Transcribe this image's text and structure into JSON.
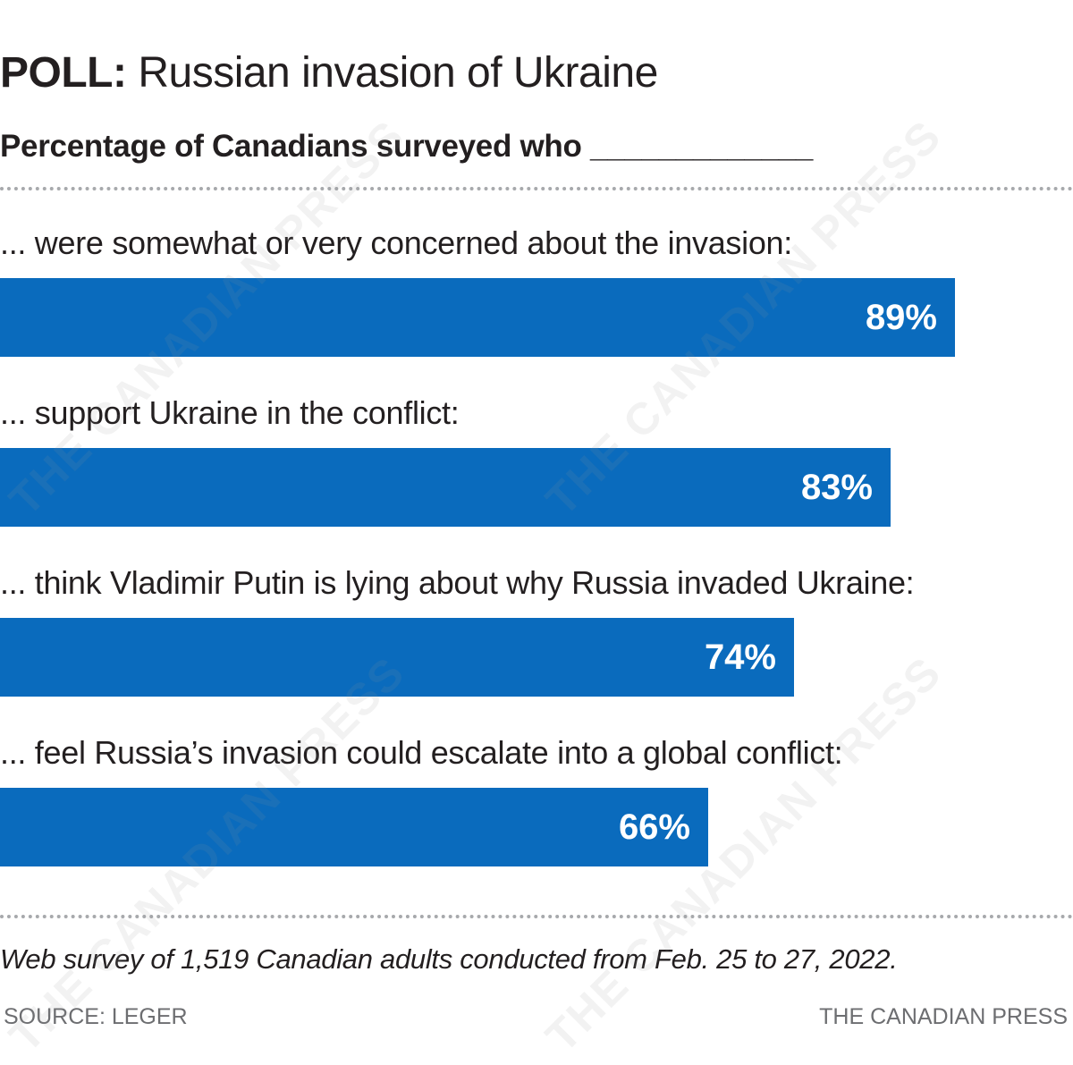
{
  "header": {
    "title_prefix": "POLL:",
    "title_main": "Russian invasion of Ukraine",
    "subtitle": "Percentage of Canadians surveyed who _____________"
  },
  "chart_data": {
    "type": "bar",
    "orientation": "horizontal",
    "title": "POLL: Russian invasion of Ukraine",
    "subtitle": "Percentage of Canadians surveyed who _____________",
    "categories": [
      "... were somewhat or very concerned about the invasion:",
      "... support Ukraine in the conflict:",
      "... think Vladimir Putin is lying about why Russia invaded Ukraine:",
      "... feel Russia’s invasion could escalate into a global conflict:"
    ],
    "values": [
      89,
      83,
      74,
      66
    ],
    "value_labels": [
      "89%",
      "83%",
      "74%",
      "66%"
    ],
    "xlim": [
      0,
      100
    ],
    "grid": false,
    "legend": "none",
    "bar_color": "#0a6bbd",
    "value_label_color": "#ffffff"
  },
  "footer": {
    "note": "Web survey of 1,519 Canadian adults conducted from Feb. 25 to 27, 2022.",
    "source": "SOURCE: LEGER",
    "credit": "THE CANADIAN PRESS"
  },
  "watermark": {
    "text": "THE CANADIAN PRESS"
  }
}
